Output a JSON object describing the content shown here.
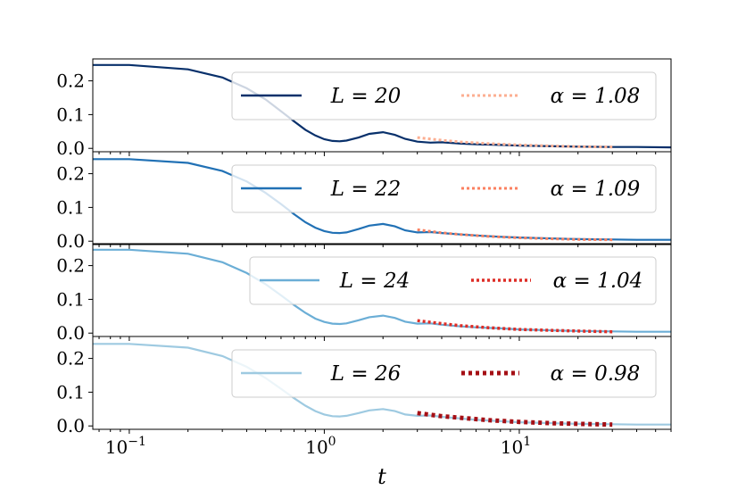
{
  "chart_data": {
    "type": "line",
    "xlabel": "t",
    "xscale": "log",
    "xlim": [
      0.065,
      60
    ],
    "x_ticks": [
      0.1,
      1,
      10
    ],
    "x_tick_labels": [
      {
        "base": "10",
        "exp": "−1"
      },
      {
        "base": "10",
        "exp": "0"
      },
      {
        "base": "10",
        "exp": "1"
      }
    ],
    "ylim": [
      -0.01,
      0.265
    ],
    "y_ticks": [
      0.0,
      0.1,
      0.2
    ],
    "y_tick_labels": [
      "0.0",
      "0.1",
      "0.2"
    ],
    "grid": false,
    "legend_placement": "upper-right",
    "panels": [
      {
        "series_color": "#08306b",
        "fit_color": "#fcae91",
        "legend": {
          "series": "L = 20",
          "fit": "α = 1.08"
        },
        "x": [
          0.065,
          0.1,
          0.2,
          0.3,
          0.4,
          0.5,
          0.6,
          0.7,
          0.8,
          0.9,
          1.0,
          1.1,
          1.2,
          1.3,
          1.5,
          1.7,
          2.0,
          2.3,
          2.6,
          3.0,
          3.5,
          4.0,
          5.0,
          6.0,
          8.0,
          10.0,
          15.0,
          20.0,
          30.0,
          40.0,
          60.0
        ],
        "y": [
          0.247,
          0.247,
          0.234,
          0.21,
          0.178,
          0.145,
          0.11,
          0.08,
          0.055,
          0.038,
          0.027,
          0.022,
          0.021,
          0.023,
          0.032,
          0.043,
          0.048,
          0.04,
          0.028,
          0.02,
          0.017,
          0.018,
          0.014,
          0.012,
          0.01,
          0.008,
          0.006,
          0.005,
          0.004,
          0.004,
          0.003
        ],
        "fit_x": [
          3,
          4,
          5,
          7,
          10,
          15,
          20,
          30
        ],
        "fit_y": [
          0.032,
          0.024,
          0.019,
          0.014,
          0.01,
          0.007,
          0.005,
          0.004
        ]
      },
      {
        "series_color": "#2171b5",
        "fit_color": "#fb8060",
        "legend": {
          "series": "L = 22",
          "fit": "α = 1.09"
        },
        "x": [
          0.065,
          0.1,
          0.2,
          0.3,
          0.4,
          0.5,
          0.6,
          0.7,
          0.8,
          0.9,
          1.0,
          1.1,
          1.2,
          1.3,
          1.5,
          1.7,
          2.0,
          2.3,
          2.6,
          3.0,
          3.5,
          4.0,
          5.0,
          6.0,
          8.0,
          10.0,
          15.0,
          20.0,
          30.0,
          40.0,
          60.0
        ],
        "y": [
          0.243,
          0.243,
          0.232,
          0.208,
          0.177,
          0.143,
          0.11,
          0.08,
          0.056,
          0.04,
          0.03,
          0.025,
          0.024,
          0.026,
          0.036,
          0.046,
          0.051,
          0.044,
          0.032,
          0.026,
          0.027,
          0.024,
          0.02,
          0.017,
          0.013,
          0.011,
          0.008,
          0.006,
          0.005,
          0.004,
          0.004
        ],
        "fit_x": [
          3,
          4,
          5,
          7,
          10,
          15,
          20,
          30
        ],
        "fit_y": [
          0.034,
          0.025,
          0.02,
          0.014,
          0.01,
          0.007,
          0.005,
          0.004
        ]
      },
      {
        "series_color": "#6baed6",
        "fit_color": "#de2d26",
        "legend": {
          "series": "L = 24",
          "fit": "α = 1.04"
        },
        "x": [
          0.065,
          0.1,
          0.2,
          0.3,
          0.4,
          0.5,
          0.6,
          0.7,
          0.8,
          0.9,
          1.0,
          1.1,
          1.2,
          1.3,
          1.5,
          1.7,
          2.0,
          2.3,
          2.6,
          3.0,
          3.5,
          4.0,
          5.0,
          6.0,
          8.0,
          10.0,
          15.0,
          20.0,
          30.0,
          40.0,
          60.0
        ],
        "y": [
          0.247,
          0.247,
          0.235,
          0.21,
          0.178,
          0.145,
          0.112,
          0.083,
          0.06,
          0.043,
          0.033,
          0.028,
          0.027,
          0.029,
          0.038,
          0.047,
          0.052,
          0.045,
          0.034,
          0.028,
          0.029,
          0.025,
          0.02,
          0.017,
          0.014,
          0.011,
          0.008,
          0.006,
          0.005,
          0.004,
          0.004
        ],
        "fit_x": [
          3,
          4,
          5,
          7,
          10,
          15,
          20,
          30
        ],
        "fit_y": [
          0.037,
          0.028,
          0.022,
          0.016,
          0.011,
          0.008,
          0.006,
          0.004
        ]
      },
      {
        "series_color": "#9ecae1",
        "fit_color": "#a50f15",
        "legend": {
          "series": "L = 26",
          "fit": "α = 0.98"
        },
        "x": [
          0.065,
          0.1,
          0.2,
          0.3,
          0.4,
          0.5,
          0.6,
          0.7,
          0.8,
          0.9,
          1.0,
          1.1,
          1.2,
          1.3,
          1.5,
          1.7,
          2.0,
          2.3,
          2.6,
          3.0,
          3.5,
          4.0,
          5.0,
          6.0,
          8.0,
          10.0,
          15.0,
          20.0,
          30.0,
          40.0,
          60.0
        ],
        "y": [
          0.243,
          0.243,
          0.232,
          0.207,
          0.175,
          0.142,
          0.11,
          0.082,
          0.06,
          0.044,
          0.034,
          0.029,
          0.028,
          0.03,
          0.038,
          0.046,
          0.05,
          0.044,
          0.034,
          0.03,
          0.031,
          0.027,
          0.022,
          0.018,
          0.014,
          0.011,
          0.008,
          0.006,
          0.005,
          0.004,
          0.004
        ],
        "fit_x": [
          3,
          4,
          5,
          7,
          10,
          15,
          20,
          30
        ],
        "fit_y": [
          0.038,
          0.029,
          0.024,
          0.017,
          0.012,
          0.008,
          0.006,
          0.004
        ]
      }
    ]
  }
}
